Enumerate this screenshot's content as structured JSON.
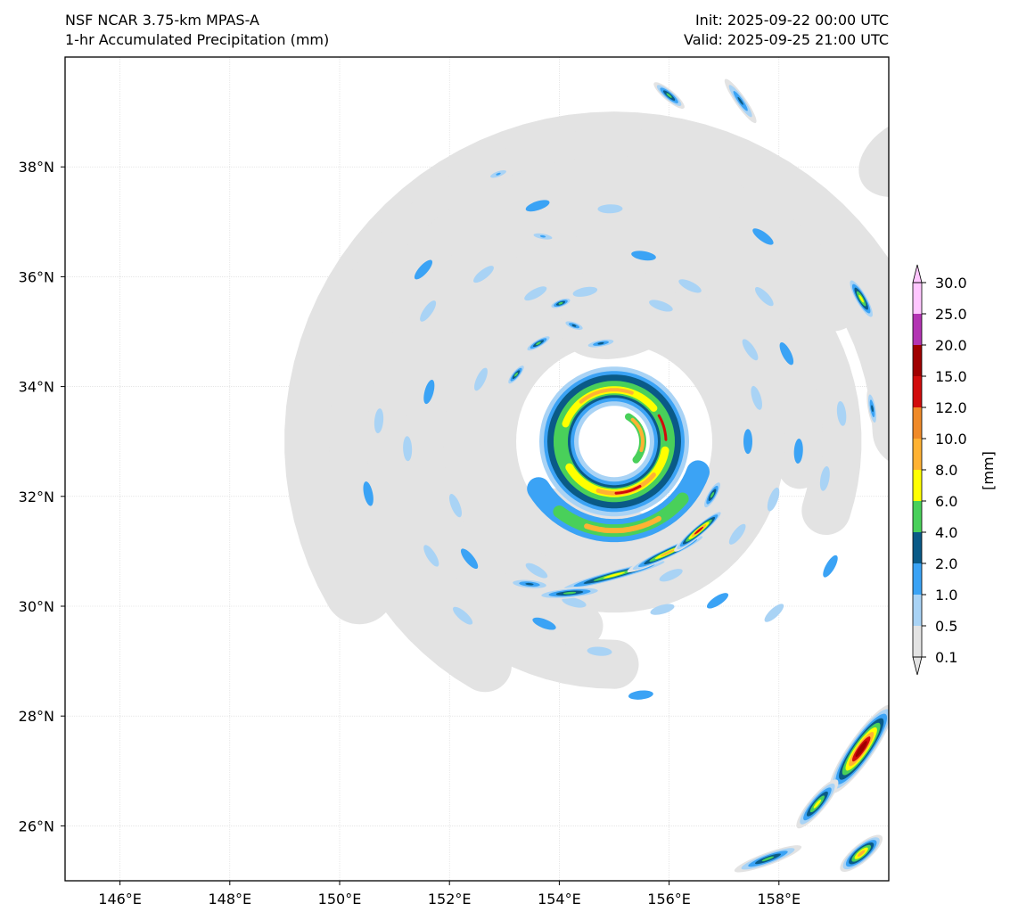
{
  "header": {
    "model": "NSF NCAR 3.75-km MPAS-A",
    "field": "1-hr Accumulated Precipitation (mm)",
    "init": "Init: 2025-09-22 00:00 UTC",
    "valid": "Valid: 2025-09-25 21:00 UTC"
  },
  "map": {
    "lon_range": [
      145,
      160
    ],
    "lat_range": [
      25,
      40
    ],
    "x_ticks": [
      "146°E",
      "148°E",
      "150°E",
      "152°E",
      "154°E",
      "156°E",
      "158°E"
    ],
    "x_tick_values": [
      146,
      148,
      150,
      152,
      154,
      156,
      158
    ],
    "y_ticks": [
      "26°N",
      "28°N",
      "30°N",
      "32°N",
      "34°N",
      "36°N",
      "38°N"
    ],
    "y_tick_values": [
      26,
      28,
      30,
      32,
      34,
      36,
      38
    ],
    "gridlines": true,
    "cyclone_center": {
      "lon": 155.0,
      "lat": 33.0
    }
  },
  "colorbar": {
    "unit_label": "[mm]",
    "levels": [
      "0.1",
      "0.5",
      "1.0",
      "2.0",
      "4.0",
      "6.0",
      "8.0",
      "10.0",
      "12.0",
      "15.0",
      "20.0",
      "25.0",
      "30.0"
    ],
    "colors": [
      "#e3e3e3",
      "#a9d3f5",
      "#3ba3f5",
      "#0a5a87",
      "#49d05a",
      "#ffff00",
      "#ffb233",
      "#f08a28",
      "#d20c0c",
      "#a00000",
      "#b334b3",
      "#ffc6ff"
    ],
    "extend": "both"
  }
}
